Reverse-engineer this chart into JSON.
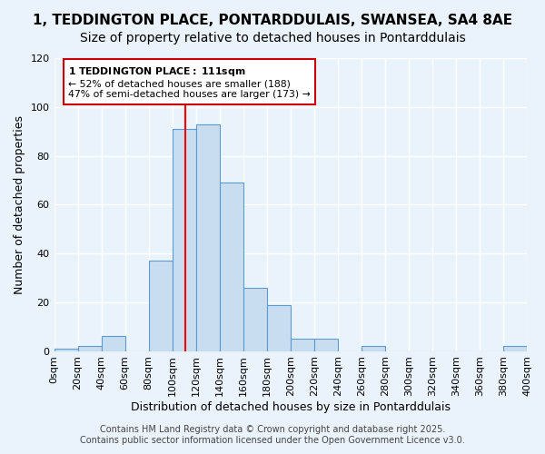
{
  "title_line1": "1, TEDDINGTON PLACE, PONTARDDULAIS, SWANSEA, SA4 8AE",
  "title_line2": "Size of property relative to detached houses in Pontarddulais",
  "xlabel": "Distribution of detached houses by size in Pontarddulais",
  "ylabel": "Number of detached properties",
  "bar_color": "#c9ddf0",
  "bar_edge_color": "#5b9bd5",
  "bin_edges": [
    0,
    20,
    40,
    60,
    80,
    100,
    120,
    140,
    160,
    180,
    200,
    220,
    240,
    260,
    280,
    300,
    320,
    340,
    360,
    380,
    400
  ],
  "bar_heights": [
    1,
    2,
    6,
    0,
    37,
    91,
    93,
    69,
    26,
    19,
    5,
    5,
    0,
    2,
    0,
    0,
    0,
    0,
    0,
    2
  ],
  "red_line_x": 111,
  "ylim": [
    0,
    120
  ],
  "yticks": [
    0,
    20,
    40,
    60,
    80,
    100,
    120
  ],
  "xtick_labels": [
    "0sqm",
    "20sqm",
    "40sqm",
    "60sqm",
    "80sqm",
    "100sqm",
    "120sqm",
    "140sqm",
    "160sqm",
    "180sqm",
    "200sqm",
    "220sqm",
    "240sqm",
    "260sqm",
    "280sqm",
    "300sqm",
    "320sqm",
    "340sqm",
    "360sqm",
    "380sqm",
    "400sqm"
  ],
  "annotation_title": "1 TEDDINGTON PLACE: 111sqm",
  "annotation_line1": "← 52% of detached houses are smaller (188)",
  "annotation_line2": "47% of semi-detached houses are larger (173) →",
  "annotation_box_color": "#ffffff",
  "annotation_box_edge_color": "#cc0000",
  "footer_line1": "Contains HM Land Registry data © Crown copyright and database right 2025.",
  "footer_line2": "Contains public sector information licensed under the Open Government Licence v3.0.",
  "bg_color": "#eaf3fb",
  "grid_color": "#ffffff",
  "title_fontsize": 11,
  "subtitle_fontsize": 10,
  "xlabel_fontsize": 9,
  "ylabel_fontsize": 9,
  "tick_fontsize": 8,
  "footer_fontsize": 7
}
